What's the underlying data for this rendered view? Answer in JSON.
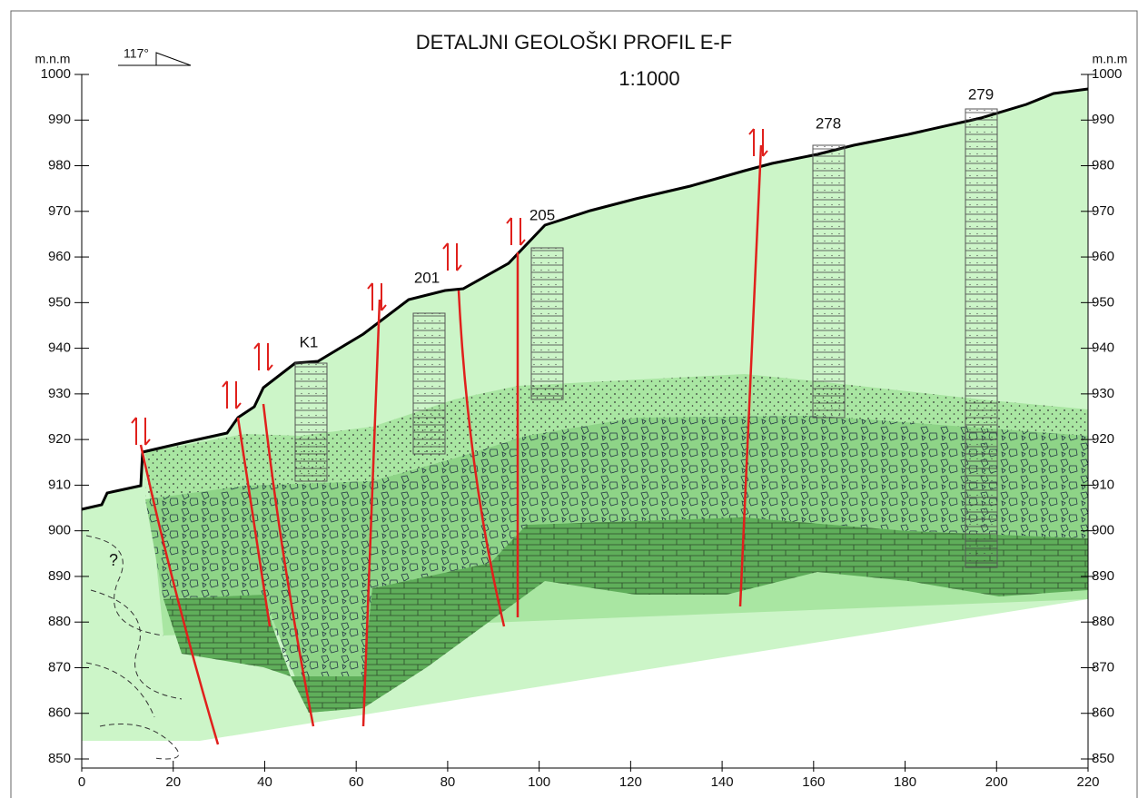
{
  "title": "DETALJNI GEOLOŠKI PROFIL E-F",
  "scale": "1:1000",
  "orientation": "117°",
  "y_axis_label_left": "m.n.m",
  "y_axis_label_right": "m.n.m",
  "xlim": [
    0,
    220
  ],
  "xticks": [
    0,
    20,
    40,
    60,
    80,
    100,
    120,
    140,
    160,
    180,
    200,
    220
  ],
  "ylim": [
    850,
    1000
  ],
  "yticks": [
    850,
    860,
    870,
    880,
    890,
    900,
    910,
    920,
    930,
    940,
    950,
    960,
    970,
    980,
    990,
    1000
  ],
  "boreholes": [
    "K1",
    "201",
    "205",
    "278",
    "279"
  ],
  "unknown_zone": "?"
}
